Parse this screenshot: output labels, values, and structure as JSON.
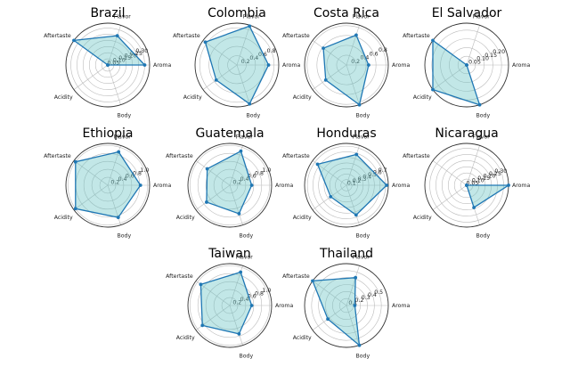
{
  "style": {
    "line_color": "#1f77b4",
    "fill_color": "#66c2c2",
    "grid_color": "#bbbbbb",
    "frame_color": "#333333"
  },
  "chart_data": [
    {
      "type": "radar",
      "title": "Brazil",
      "axes": [
        "Flavor",
        "Aftertaste",
        "Acidity",
        "Body",
        "Aroma"
      ],
      "values": [
        0.25,
        0.34,
        0.0,
        0.0,
        0.3
      ],
      "rmax": 0.34,
      "rticks": [
        0.05,
        0.1,
        0.15,
        0.2,
        0.25,
        0.3
      ],
      "rtick_labels": [
        "0.05",
        "0.10",
        "0.15",
        "0.20",
        "0.25",
        "0.30"
      ]
    },
    {
      "type": "radar",
      "title": "Colombia",
      "axes": [
        "Flavor",
        "Aftertaste",
        "Acidity",
        "Body",
        "Aroma"
      ],
      "values": [
        0.88,
        0.84,
        0.55,
        0.88,
        0.68
      ],
      "rmax": 0.9,
      "rticks": [
        0.2,
        0.4,
        0.6,
        0.8
      ],
      "rtick_labels": [
        "0.2",
        "0.4",
        "0.6",
        "0.8"
      ]
    },
    {
      "type": "radar",
      "title": "Costa Rica",
      "axes": [
        "Flavor",
        "Aftertaste",
        "Acidity",
        "Body",
        "Aroma"
      ],
      "values": [
        0.64,
        0.58,
        0.52,
        0.85,
        0.45
      ],
      "rmax": 0.85,
      "rticks": [
        0.2,
        0.4,
        0.6,
        0.8
      ],
      "rtick_labels": [
        "0.2",
        "0.4",
        "0.6",
        "0.8"
      ]
    },
    {
      "type": "radar",
      "title": "El Salvador",
      "axes": [
        "Flavor",
        "Aftertaste",
        "Acidity",
        "Body",
        "Aroma"
      ],
      "values": [
        0.0,
        0.24,
        0.24,
        0.24,
        0.0
      ],
      "rmax": 0.24,
      "rticks": [
        0.05,
        0.1,
        0.15,
        0.2
      ],
      "rtick_labels": [
        "0.05",
        "0.10",
        "0.15",
        "0.20"
      ]
    },
    {
      "type": "radar",
      "title": "Ethiopia",
      "axes": [
        "Flavor",
        "Aftertaste",
        "Acidity",
        "Body",
        "Aroma"
      ],
      "values": [
        0.88,
        1.0,
        1.0,
        0.85,
        0.82
      ],
      "rmax": 1.05,
      "rticks": [
        0.2,
        0.4,
        0.6,
        0.8,
        1.0
      ],
      "rtick_labels": [
        "0.2",
        "0.4",
        "0.6",
        "0.8",
        "1.0"
      ]
    },
    {
      "type": "radar",
      "title": "Guatemala",
      "axes": [
        "Flavor",
        "Aftertaste",
        "Acidity",
        "Body",
        "Aroma"
      ],
      "values": [
        0.9,
        0.7,
        0.72,
        0.75,
        0.55
      ],
      "rmax": 1.05,
      "rticks": [
        0.2,
        0.4,
        0.6,
        0.8,
        1.0
      ],
      "rtick_labels": [
        "0.2",
        "0.4",
        "0.6",
        "0.8",
        "1.0"
      ]
    },
    {
      "type": "radar",
      "title": "Honduras",
      "axes": [
        "Flavor",
        "Aftertaste",
        "Acidity",
        "Body",
        "Aroma"
      ],
      "values": [
        0.58,
        0.64,
        0.35,
        0.56,
        0.72
      ],
      "rmax": 0.75,
      "rticks": [
        0.1,
        0.2,
        0.3,
        0.4,
        0.5,
        0.6,
        0.7
      ],
      "rtick_labels": [
        "0.1",
        "0.2",
        "0.3",
        "0.4",
        "0.5",
        "0.6",
        "0.7"
      ]
    },
    {
      "type": "radar",
      "title": "Nicaragua",
      "axes": [
        "Flavor",
        "Aftertaste",
        "Acidity",
        "Body",
        "Aroma"
      ],
      "values": [
        0.0,
        0.0,
        0.0,
        0.19,
        0.34
      ],
      "rmax": 0.34,
      "rticks": [
        0.05,
        0.1,
        0.15,
        0.2,
        0.25,
        0.3
      ],
      "rtick_labels": [
        "0.05",
        "0.10",
        "0.15",
        "0.20",
        "0.25",
        "0.30"
      ]
    },
    {
      "type": "radar",
      "title": "Taiwan",
      "axes": [
        "Flavor",
        "Aftertaste",
        "Acidity",
        "Body",
        "Aroma"
      ],
      "values": [
        0.88,
        0.9,
        0.85,
        0.75,
        0.55
      ],
      "rmax": 1.05,
      "rticks": [
        0.2,
        0.4,
        0.6,
        0.8,
        1.0
      ],
      "rtick_labels": [
        "0.2",
        "0.4",
        "0.6",
        "0.8",
        "1.0"
      ]
    },
    {
      "type": "radar",
      "title": "Thailand",
      "axes": [
        "Flavor",
        "Aftertaste",
        "Acidity",
        "Body",
        "Aroma"
      ],
      "values": [
        0.42,
        0.6,
        0.33,
        0.6,
        0.12
      ],
      "rmax": 0.6,
      "rticks": [
        0.1,
        0.2,
        0.3,
        0.4,
        0.5
      ],
      "rtick_labels": [
        "0.1",
        "0.2",
        "0.3",
        "0.4",
        "0.5"
      ]
    }
  ]
}
